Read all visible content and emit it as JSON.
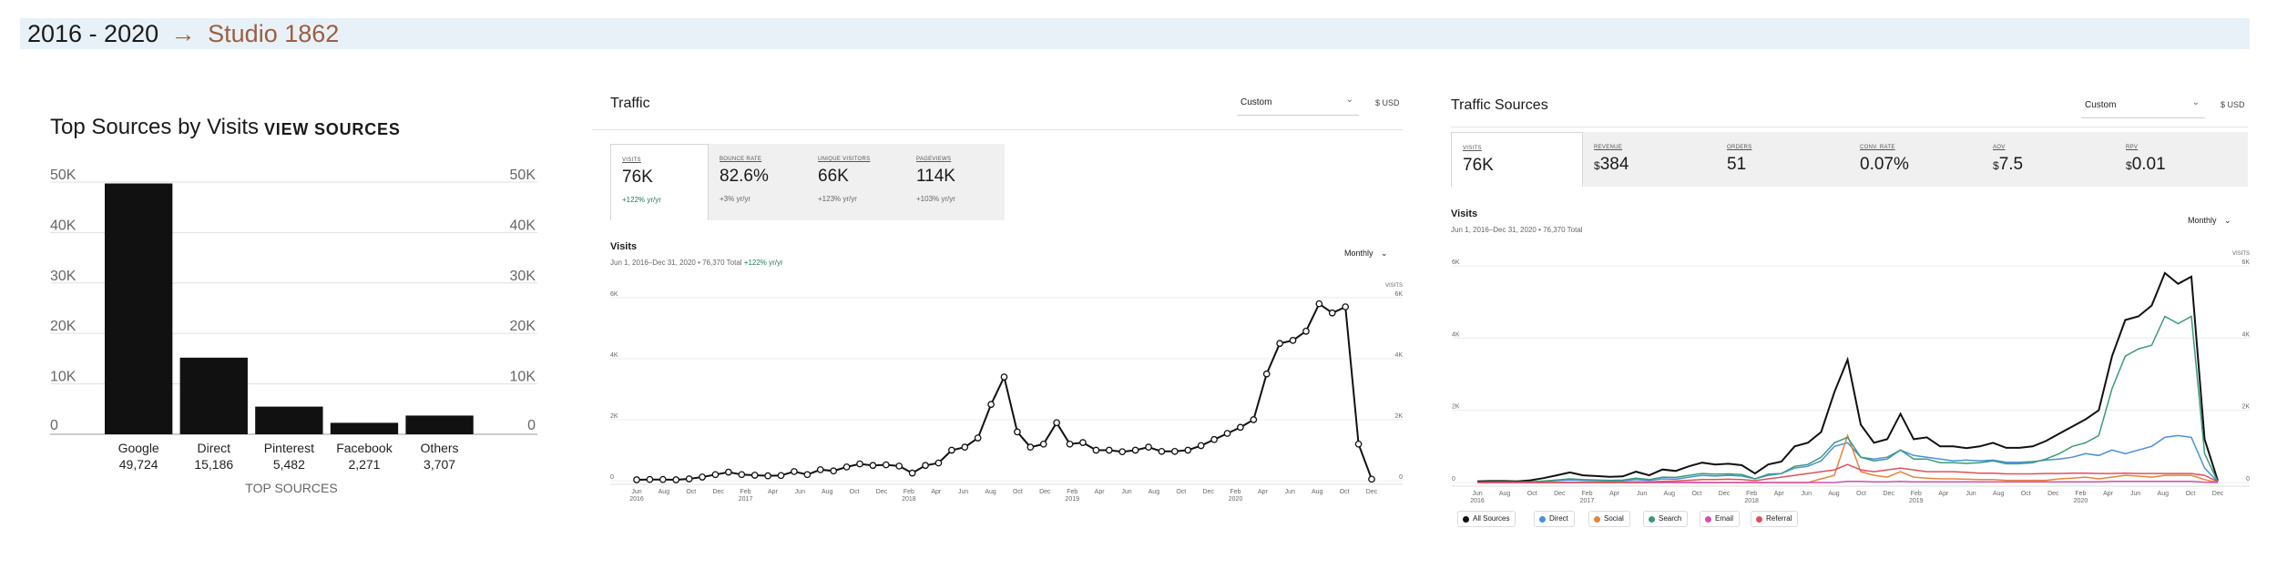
{
  "header": {
    "years": "2016 - 2020",
    "arrow": "→",
    "studio": "Studio 1862"
  },
  "top_sources": {
    "title": "Top Sources by Visits",
    "link": "VIEW SOURCES",
    "axis_title": "TOP SOURCES",
    "bar_color": "#111111"
  },
  "traffic": {
    "title": "Traffic",
    "dropdown": "Custom",
    "currency": "$ USD",
    "metrics": [
      {
        "label": "VISITS",
        "value": "76K",
        "change": "+122% yr/yr",
        "good": true
      },
      {
        "label": "BOUNCE RATE",
        "value": "82.6%",
        "change": "+3% yr/yr",
        "good": false
      },
      {
        "label": "UNIQUE VISITORS",
        "value": "66K",
        "change": "+123% yr/yr",
        "good": false
      },
      {
        "label": "PAGEVIEWS",
        "value": "114K",
        "change": "+103% yr/yr",
        "good": false
      }
    ],
    "chart_title": "Visits",
    "caption": "Jun 1, 2016–Dec 31, 2020 • 76,370 Total",
    "caption_change": "+122% yr/yr",
    "period": "Monthly",
    "good_color": "#1f7a55"
  },
  "traffic_sources": {
    "title": "Traffic Sources",
    "dropdown": "Custom",
    "currency": "$ USD",
    "metrics": [
      {
        "label": "VISITS",
        "prefix": "",
        "value": "76K"
      },
      {
        "label": "REVENUE",
        "prefix": "$",
        "value": "384"
      },
      {
        "label": "ORDERS",
        "prefix": "",
        "value": "51"
      },
      {
        "label": "CONV. RATE",
        "prefix": "",
        "value": "0.07%"
      },
      {
        "label": "AOV",
        "prefix": "$",
        "value": "7.5"
      },
      {
        "label": "RPV",
        "prefix": "$",
        "value": "0.01"
      }
    ],
    "chart_title": "Visits",
    "caption": "Jun 1, 2016–Dec 31, 2020 • 76,370 Total",
    "period": "Monthly",
    "legend": [
      {
        "label": "All Sources",
        "color": "#111111"
      },
      {
        "label": "Direct",
        "color": "#4a8fdd"
      },
      {
        "label": "Social",
        "color": "#e8833a"
      },
      {
        "label": "Search",
        "color": "#3a9b78"
      },
      {
        "label": "Email",
        "color": "#d44fb3"
      },
      {
        "label": "Referral",
        "color": "#e0505a"
      }
    ]
  },
  "chart_data": [
    {
      "type": "bar",
      "title": "Top Sources by Visits",
      "xlabel": "TOP SOURCES",
      "ylabel": "",
      "categories": [
        "Google",
        "Direct",
        "Pinterest",
        "Facebook",
        "Others"
      ],
      "values": [
        49724,
        15186,
        5482,
        2271,
        3707
      ],
      "value_labels": [
        "49,724",
        "15,186",
        "5,482",
        "2,271",
        "3,707"
      ],
      "ylim": [
        0,
        50000
      ],
      "yticks": [
        0,
        10000,
        20000,
        30000,
        40000,
        50000
      ],
      "ytick_labels": [
        "0",
        "10K",
        "20K",
        "30K",
        "40K",
        "50K"
      ],
      "grid": true
    },
    {
      "type": "line",
      "title": "Visits",
      "ylabel": "VISITS",
      "x_start": "2016-06",
      "ylim": [
        0,
        6000
      ],
      "yticks": [
        0,
        2000,
        4000,
        6000
      ],
      "ytick_labels": [
        "0",
        "2K",
        "4K",
        "6K"
      ],
      "xtick_labels": [
        [
          "Jun",
          "2016"
        ],
        [
          "Aug",
          ""
        ],
        [
          "Oct",
          ""
        ],
        [
          "Dec",
          ""
        ],
        [
          "Feb",
          "2017"
        ],
        [
          "Apr",
          ""
        ],
        [
          "Jun",
          ""
        ],
        [
          "Aug",
          ""
        ],
        [
          "Oct",
          ""
        ],
        [
          "Dec",
          ""
        ],
        [
          "Feb",
          "2018"
        ],
        [
          "Apr",
          ""
        ],
        [
          "Jun",
          ""
        ],
        [
          "Aug",
          ""
        ],
        [
          "Oct",
          ""
        ],
        [
          "Dec",
          ""
        ],
        [
          "Feb",
          "2019"
        ],
        [
          "Apr",
          ""
        ],
        [
          "Jun",
          ""
        ],
        [
          "Aug",
          ""
        ],
        [
          "Oct",
          ""
        ],
        [
          "Dec",
          ""
        ],
        [
          "Feb",
          "2020"
        ],
        [
          "Apr",
          ""
        ],
        [
          "Jun",
          ""
        ],
        [
          "Aug",
          ""
        ],
        [
          "Oct",
          ""
        ],
        [
          "Dec",
          ""
        ]
      ],
      "series": [
        {
          "values": [
            30,
            40,
            40,
            30,
            60,
            120,
            200,
            280,
            200,
            180,
            160,
            170,
            300,
            200,
            360,
            320,
            450,
            550,
            500,
            520,
            480,
            250,
            500,
            580,
            1000,
            1100,
            1400,
            2500,
            3400,
            1600,
            1100,
            1200,
            1900,
            1200,
            1250,
            1000,
            1000,
            950,
            1000,
            1100,
            960,
            960,
            1000,
            1150,
            1350,
            1550,
            1750,
            2000,
            3500,
            4500,
            4600,
            4900,
            5800,
            5500,
            5700,
            1200,
            50
          ]
        }
      ]
    },
    {
      "type": "line",
      "title": "Visits",
      "ylabel": "VISITS",
      "x_start": "2016-06",
      "ylim": [
        0,
        6000
      ],
      "yticks": [
        0,
        2000,
        4000,
        6000
      ],
      "ytick_labels": [
        "0",
        "2K",
        "4K",
        "6K"
      ],
      "xtick_labels": [
        [
          "Jun",
          "2016"
        ],
        [
          "Aug",
          ""
        ],
        [
          "Oct",
          ""
        ],
        [
          "Dec",
          ""
        ],
        [
          "Feb",
          "2017"
        ],
        [
          "Apr",
          ""
        ],
        [
          "Jun",
          ""
        ],
        [
          "Aug",
          ""
        ],
        [
          "Oct",
          ""
        ],
        [
          "Dec",
          ""
        ],
        [
          "Feb",
          "2018"
        ],
        [
          "Apr",
          ""
        ],
        [
          "Jun",
          ""
        ],
        [
          "Aug",
          ""
        ],
        [
          "Oct",
          ""
        ],
        [
          "Dec",
          ""
        ],
        [
          "Feb",
          "2019"
        ],
        [
          "Apr",
          ""
        ],
        [
          "Jun",
          ""
        ],
        [
          "Aug",
          ""
        ],
        [
          "Oct",
          ""
        ],
        [
          "Dec",
          ""
        ],
        [
          "Feb",
          "2020"
        ],
        [
          "Apr",
          ""
        ],
        [
          "Jun",
          ""
        ],
        [
          "Aug",
          ""
        ],
        [
          "Oct",
          ""
        ],
        [
          "Dec",
          ""
        ]
      ],
      "series": [
        {
          "name": "All Sources",
          "values": [
            30,
            40,
            40,
            30,
            60,
            120,
            200,
            280,
            200,
            180,
            160,
            170,
            300,
            200,
            360,
            320,
            450,
            550,
            500,
            520,
            480,
            250,
            500,
            580,
            1000,
            1100,
            1400,
            2500,
            3400,
            1600,
            1100,
            1200,
            1900,
            1200,
            1250,
            1000,
            1000,
            950,
            1000,
            1100,
            960,
            960,
            1000,
            1150,
            1350,
            1550,
            1750,
            2000,
            3500,
            4500,
            4600,
            4900,
            5800,
            5500,
            5700,
            1200,
            50
          ]
        },
        {
          "name": "Direct",
          "values": [
            5,
            8,
            10,
            8,
            15,
            30,
            50,
            70,
            60,
            50,
            40,
            45,
            80,
            60,
            100,
            90,
            150,
            200,
            180,
            200,
            180,
            100,
            200,
            250,
            400,
            450,
            600,
            1000,
            1100,
            700,
            650,
            700,
            900,
            750,
            700,
            650,
            600,
            620,
            600,
            620,
            560,
            560,
            580,
            620,
            650,
            700,
            800,
            750,
            900,
            800,
            900,
            1000,
            1250,
            1300,
            1250,
            400,
            20
          ]
        },
        {
          "name": "Social",
          "values": [
            0,
            0,
            0,
            0,
            0,
            0,
            0,
            0,
            0,
            0,
            0,
            0,
            0,
            0,
            0,
            0,
            0,
            0,
            0,
            0,
            0,
            0,
            0,
            0,
            0,
            0,
            100,
            200,
            1300,
            300,
            200,
            150,
            300,
            150,
            120,
            100,
            100,
            90,
            80,
            80,
            60,
            60,
            60,
            60,
            100,
            120,
            150,
            100,
            150,
            200,
            180,
            150,
            200,
            200,
            200,
            80,
            0
          ]
        },
        {
          "name": "Search",
          "values": [
            10,
            15,
            15,
            12,
            20,
            40,
            70,
            100,
            80,
            70,
            60,
            65,
            120,
            80,
            150,
            140,
            200,
            250,
            230,
            240,
            220,
            100,
            230,
            250,
            450,
            500,
            700,
            1100,
            1250,
            700,
            600,
            650,
            900,
            650,
            650,
            550,
            550,
            530,
            550,
            600,
            520,
            520,
            550,
            650,
            800,
            1000,
            1100,
            1300,
            2600,
            3500,
            3700,
            3800,
            4600,
            4400,
            4600,
            800,
            20
          ]
        },
        {
          "name": "Email",
          "values": [
            0,
            0,
            0,
            0,
            0,
            0,
            0,
            0,
            0,
            0,
            0,
            0,
            0,
            0,
            0,
            0,
            0,
            0,
            0,
            0,
            0,
            0,
            0,
            0,
            0,
            0,
            0,
            0,
            30,
            30,
            20,
            20,
            30,
            20,
            20,
            20,
            20,
            20,
            20,
            20,
            20,
            20,
            20,
            20,
            20,
            20,
            20,
            20,
            30,
            30,
            30,
            30,
            30,
            30,
            30,
            10,
            0
          ]
        },
        {
          "name": "Referral",
          "values": [
            0,
            0,
            0,
            0,
            0,
            0,
            0,
            0,
            10,
            10,
            10,
            10,
            20,
            20,
            30,
            40,
            60,
            80,
            80,
            90,
            80,
            50,
            100,
            150,
            200,
            250,
            300,
            350,
            500,
            350,
            300,
            350,
            400,
            350,
            300,
            300,
            300,
            280,
            260,
            260,
            240,
            240,
            240,
            250,
            250,
            260,
            260,
            250,
            250,
            260,
            250,
            250,
            250,
            250,
            250,
            200,
            20
          ]
        }
      ]
    }
  ]
}
